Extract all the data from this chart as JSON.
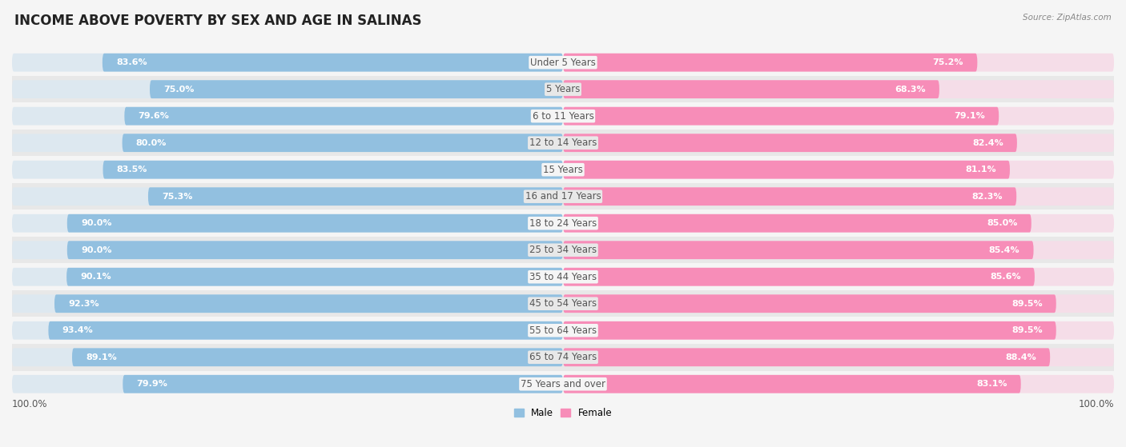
{
  "title": "INCOME ABOVE POVERTY BY SEX AND AGE IN SALINAS",
  "source": "Source: ZipAtlas.com",
  "categories": [
    "Under 5 Years",
    "5 Years",
    "6 to 11 Years",
    "12 to 14 Years",
    "15 Years",
    "16 and 17 Years",
    "18 to 24 Years",
    "25 to 34 Years",
    "35 to 44 Years",
    "45 to 54 Years",
    "55 to 64 Years",
    "65 to 74 Years",
    "75 Years and over"
  ],
  "male_values": [
    83.6,
    75.0,
    79.6,
    80.0,
    83.5,
    75.3,
    90.0,
    90.0,
    90.1,
    92.3,
    93.4,
    89.1,
    79.9
  ],
  "female_values": [
    75.2,
    68.3,
    79.1,
    82.4,
    81.1,
    82.3,
    85.0,
    85.4,
    85.6,
    89.5,
    89.5,
    88.4,
    83.1
  ],
  "male_color": "#92c0e0",
  "female_color": "#f78db8",
  "track_color": "#dde8f0",
  "track_color_female": "#f5dde8",
  "bg_color_odd": "#f5f5f5",
  "bg_color_even": "#e8e8e8",
  "title_fontsize": 12,
  "label_fontsize": 8.5,
  "value_fontsize": 8,
  "max_value": 100.0,
  "bar_height": 0.68,
  "center_label_color": "#555555"
}
